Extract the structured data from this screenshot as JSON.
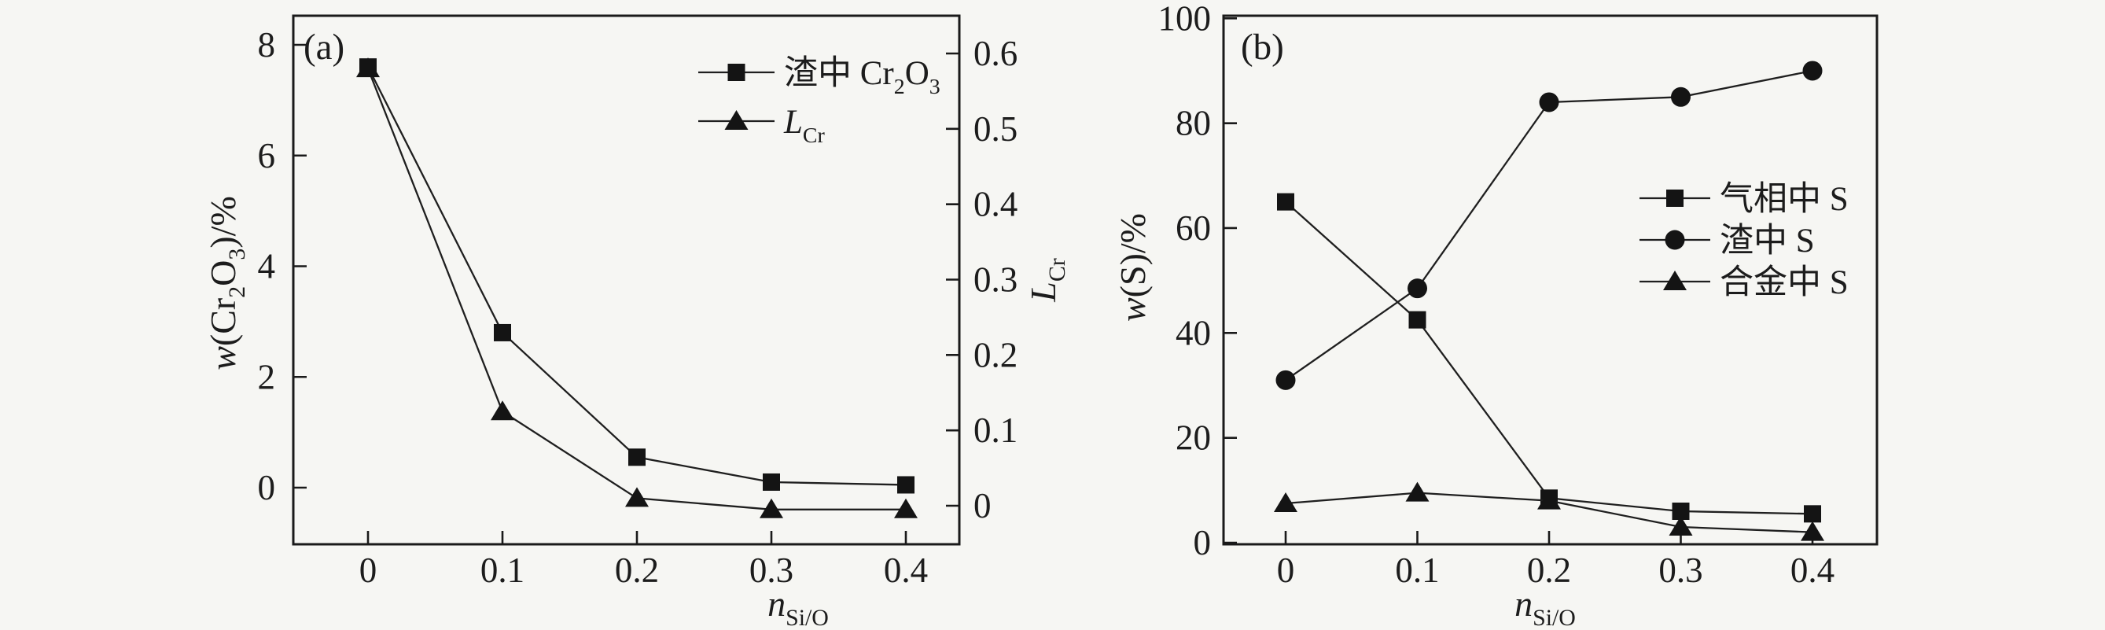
{
  "figure_background": "#f6f6f3",
  "colors": {
    "line": "#1f1f1f",
    "marker": "#141414",
    "text": "#1c1c1c",
    "frame": "#1a1a1a"
  },
  "chart_data": [
    {
      "id": "a",
      "type": "line",
      "panel_label": "(a)",
      "x": [
        0,
        0.1,
        0.2,
        0.3,
        0.4
      ],
      "x_tick_labels": [
        "0",
        "0.1",
        "0.2",
        "0.3",
        "0.4"
      ],
      "xlabel": {
        "text": "nSi/O",
        "segments": [
          {
            "t": "n",
            "i": true
          },
          {
            "t": "Si/O",
            "sub": true
          }
        ]
      },
      "y_left": {
        "label": {
          "text": "w(Cr2O3)/%",
          "segments": [
            {
              "t": "w",
              "i": true
            },
            {
              "t": "(Cr"
            },
            {
              "t": "2",
              "sub": true
            },
            {
              "t": "O"
            },
            {
              "t": "3",
              "sub": true
            },
            {
              "t": ")/%"
            }
          ]
        },
        "tick_labels": [
          "0",
          "2",
          "4",
          "6",
          "8"
        ],
        "range": [
          0,
          8
        ]
      },
      "y_right": {
        "label": {
          "text": "LCr",
          "segments": [
            {
              "t": "L",
              "i": true
            },
            {
              "t": "Cr",
              "sub": true
            }
          ]
        },
        "tick_labels": [
          "0",
          "0.1",
          "0.2",
          "0.3",
          "0.4",
          "0.5",
          "0.6"
        ],
        "range": [
          0,
          0.6
        ]
      },
      "legend_position": "top-right-inside",
      "grid": false,
      "series": [
        {
          "key": "slag-cr2o3",
          "name": "渣中 Cr₂O₃",
          "legend_segments": [
            {
              "t": "渣中 Cr"
            },
            {
              "t": "2",
              "sub": true
            },
            {
              "t": "O"
            },
            {
              "t": "3",
              "sub": true
            }
          ],
          "marker": "square",
          "axis": "left",
          "values": [
            7.6,
            2.8,
            0.55,
            0.1,
            0.05
          ]
        },
        {
          "key": "l-cr",
          "name": "LCr",
          "legend_segments": [
            {
              "t": "L",
              "i": true
            },
            {
              "t": "Cr",
              "sub": true
            }
          ],
          "marker": "triangle",
          "axis": "right",
          "values": [
            0.58,
            0.125,
            0.01,
            -0.005,
            -0.005
          ]
        }
      ]
    },
    {
      "id": "b",
      "type": "line",
      "panel_label": "(b)",
      "x": [
        0,
        0.1,
        0.2,
        0.3,
        0.4
      ],
      "x_tick_labels": [
        "0",
        "0.1",
        "0.2",
        "0.3",
        "0.4"
      ],
      "xlabel": {
        "text": "nSi/O",
        "segments": [
          {
            "t": "n",
            "i": true
          },
          {
            "t": "Si/O",
            "sub": true
          }
        ]
      },
      "y_left": {
        "label": {
          "text": "w(S)/%",
          "segments": [
            {
              "t": "w",
              "i": true
            },
            {
              "t": "(S)/%"
            }
          ]
        },
        "tick_labels": [
          "0",
          "20",
          "40",
          "60",
          "80",
          "100"
        ],
        "range": [
          0,
          100
        ]
      },
      "legend_position": "right-middle-inside",
      "grid": false,
      "series": [
        {
          "key": "gas-phase-s",
          "name": "气相中 S",
          "legend_segments": [
            {
              "t": "气相中 S"
            }
          ],
          "marker": "square",
          "axis": "left",
          "values": [
            65,
            42.5,
            8.5,
            6,
            5.5
          ]
        },
        {
          "key": "slag-s",
          "name": "渣中 S",
          "legend_segments": [
            {
              "t": "渣中 S"
            }
          ],
          "marker": "circle",
          "axis": "left",
          "values": [
            31,
            48.5,
            84,
            85,
            90
          ]
        },
        {
          "key": "alloy-s",
          "name": "合金中 S",
          "legend_segments": [
            {
              "t": "合金中 S"
            }
          ],
          "marker": "triangle",
          "axis": "left",
          "values": [
            7.5,
            9.5,
            8,
            3,
            2
          ]
        }
      ]
    }
  ]
}
